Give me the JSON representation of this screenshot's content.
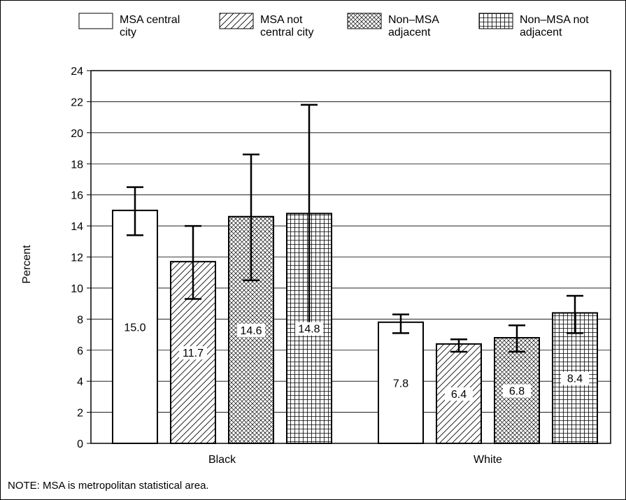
{
  "chart_data": {
    "type": "bar",
    "ylabel": "Percent",
    "ylim": [
      0,
      24
    ],
    "yticks": [
      0,
      2,
      4,
      6,
      8,
      10,
      12,
      14,
      16,
      18,
      20,
      22,
      24
    ],
    "grid": "horizontal",
    "legend_position": "top",
    "categories": [
      "Black",
      "White"
    ],
    "series": [
      {
        "name": "MSA central city",
        "pattern": "solid",
        "values": [
          15.0,
          7.8
        ],
        "labels": [
          "15.0",
          "7.8"
        ],
        "err_low": [
          13.4,
          7.1
        ],
        "err_high": [
          16.5,
          8.3
        ]
      },
      {
        "name": "MSA not central city",
        "pattern": "diagonal",
        "values": [
          11.7,
          6.4
        ],
        "labels": [
          "11.7",
          "6.4"
        ],
        "err_low": [
          9.3,
          5.9
        ],
        "err_high": [
          14.0,
          6.7
        ]
      },
      {
        "name": "Non–MSA adjacent",
        "pattern": "crosshatch",
        "values": [
          14.6,
          6.8
        ],
        "labels": [
          "14.6",
          "6.8"
        ],
        "err_low": [
          10.5,
          5.9
        ],
        "err_high": [
          18.6,
          7.6
        ]
      },
      {
        "name": "Non–MSA not adjacent",
        "pattern": "grid",
        "values": [
          14.8,
          8.4
        ],
        "labels": [
          "14.8",
          "8.4"
        ],
        "err_low": [
          7.7,
          7.1
        ],
        "err_high": [
          21.8,
          9.5
        ]
      }
    ]
  },
  "legend": {
    "items": [
      {
        "line1": "MSA central",
        "line2": "city"
      },
      {
        "line1": "MSA not",
        "line2": "central city"
      },
      {
        "line1": "Non–MSA",
        "line2": "adjacent"
      },
      {
        "line1": "Non–MSA not",
        "line2": "adjacent"
      }
    ]
  },
  "note": "NOTE: MSA is metropolitan statistical area."
}
